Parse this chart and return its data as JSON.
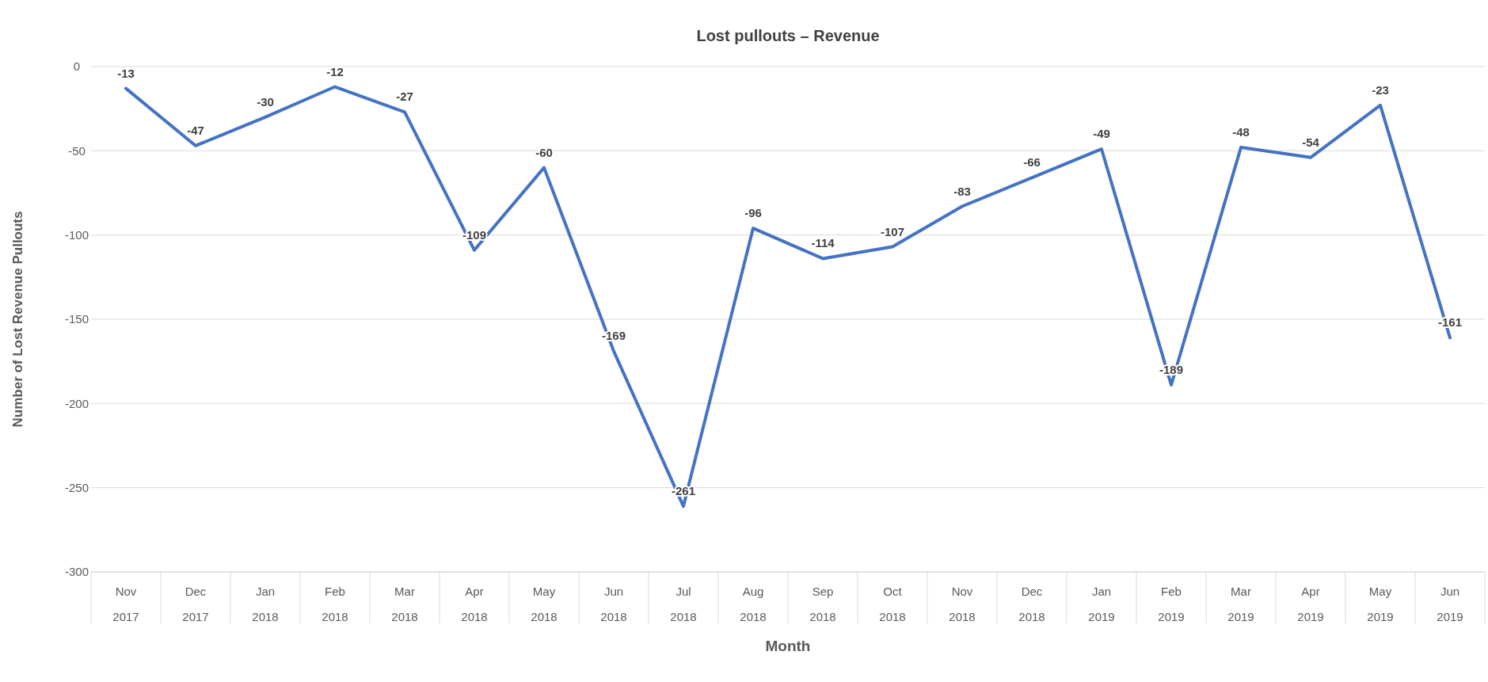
{
  "chart_data": {
    "type": "line",
    "title": "Lost pullouts – Revenue",
    "xlabel": "Month",
    "ylabel": "Number of Lost Revenue Pullouts",
    "categories": [
      "Nov 2017",
      "Dec 2017",
      "Jan 2018",
      "Feb 2018",
      "Mar 2018",
      "Apr 2018",
      "May 2018",
      "Jun 2018",
      "Jul 2018",
      "Aug 2018",
      "Sep 2018",
      "Oct 2018",
      "Nov 2018",
      "Dec 2018",
      "Jan 2019",
      "Feb 2019",
      "Mar 2019",
      "Apr 2019",
      "May 2019",
      "Jun 2019"
    ],
    "series": [
      {
        "color": "#4472c4",
        "values": [
          -13,
          -47,
          -30,
          -12,
          -27,
          -109,
          -60,
          -169,
          -261,
          -96,
          -114,
          -107,
          -83,
          -66,
          -49,
          -189,
          -48,
          -54,
          -23,
          -161
        ]
      }
    ],
    "ylim": [
      -300,
      0
    ],
    "yticks": [
      -300,
      -250,
      -200,
      -150,
      -100,
      -50,
      0
    ],
    "grid": "y",
    "data_labels": true,
    "marker": "none",
    "line_style": "solid"
  }
}
